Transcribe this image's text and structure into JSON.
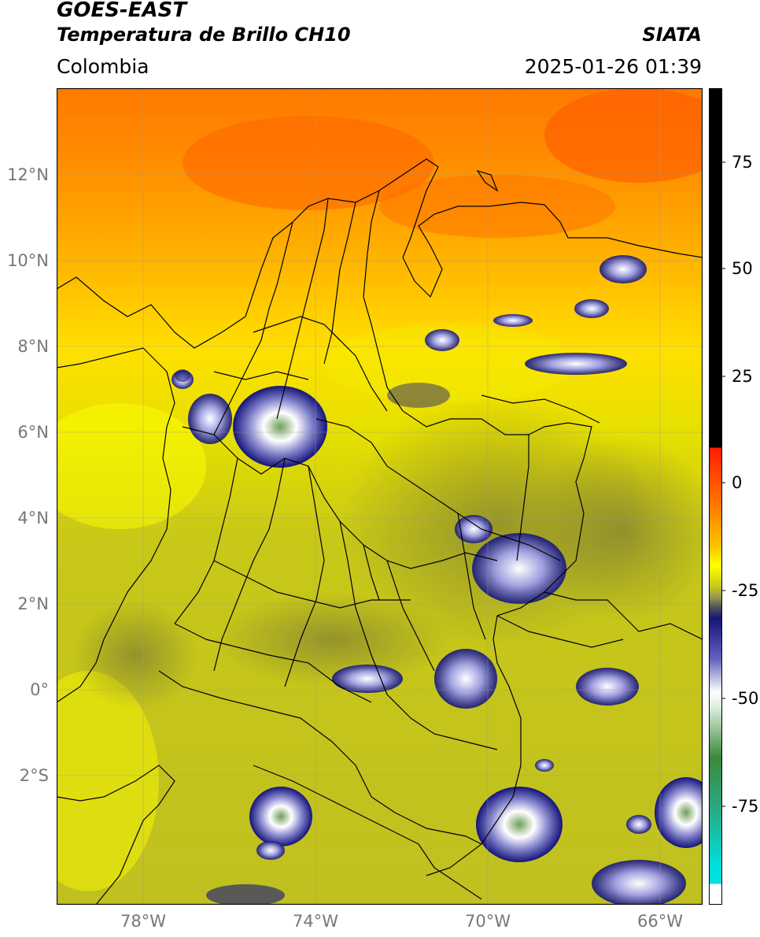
{
  "header": {
    "satellite": "GOES-EAST",
    "product": "Temperatura de Brillo CH10",
    "region": "Colombia",
    "agency": "SIATA",
    "datetime": "2025-01-26 01:39"
  },
  "map": {
    "lat_ticks": [
      "12°N",
      "10°N",
      "8°N",
      "6°N",
      "4°N",
      "2°N",
      "0°",
      "2°S"
    ],
    "lon_ticks": [
      "78°W",
      "74°W",
      "70°W",
      "66°W"
    ]
  },
  "colorbar": {
    "ticks": [
      "75",
      "50",
      "25",
      "0",
      "-25",
      "-50",
      "-75"
    ]
  },
  "colors": {
    "warm": "#ff6a00",
    "yellow": "#ffff00",
    "olive": "#b5b510",
    "navy": "#14147a",
    "white": "#ffffff",
    "green": "#4a8a3a",
    "cyan": "#00d8d8",
    "black": "#000000"
  }
}
